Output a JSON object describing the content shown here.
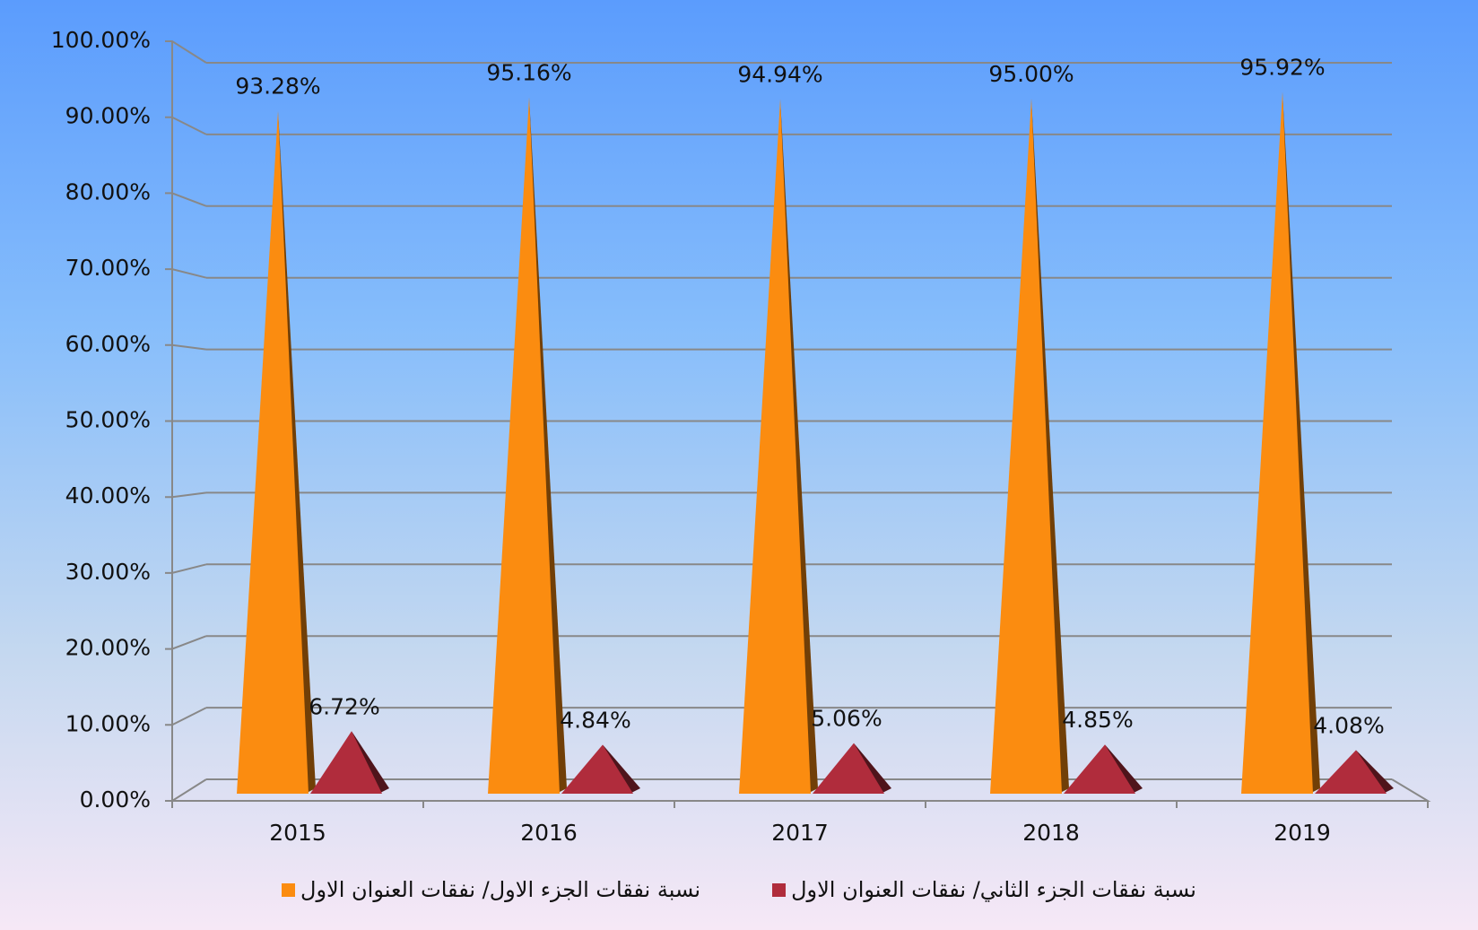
{
  "chart_data": {
    "type": "bar",
    "categories": [
      "2015",
      "2016",
      "2017",
      "2018",
      "2019"
    ],
    "series": [
      {
        "name": "نسبة نفقات الجزء الاول/ نفقات العنوان الاول",
        "color": "#fb8c10",
        "values": [
          93.28,
          95.16,
          94.94,
          95.0,
          95.92
        ],
        "value_labels": [
          "93.28%",
          "95.16%",
          "94.94%",
          "95.00%",
          "95.92%"
        ]
      },
      {
        "name": "نسبة نفقات الجزء الثاني/ نفقات العنوان الاول",
        "color": "#b02c3c",
        "values": [
          6.72,
          4.84,
          5.06,
          4.85,
          4.08
        ],
        "value_labels": [
          "6.72%",
          "4.84%",
          "5.06%",
          "4.85%",
          "4.08%"
        ]
      }
    ],
    "ylim": [
      0,
      100
    ],
    "yticks": [
      {
        "value": 0,
        "label": "0.00%"
      },
      {
        "value": 10,
        "label": "10.00%"
      },
      {
        "value": 20,
        "label": "20.00%"
      },
      {
        "value": 30,
        "label": "30.00%"
      },
      {
        "value": 40,
        "label": "40.00%"
      },
      {
        "value": 50,
        "label": "50.00%"
      },
      {
        "value": 60,
        "label": "60.00%"
      },
      {
        "value": 70,
        "label": "70.00%"
      },
      {
        "value": 80,
        "label": "80.00%"
      },
      {
        "value": 90,
        "label": "90.00%"
      },
      {
        "value": 100,
        "label": "100.00%"
      }
    ],
    "grid": true
  }
}
